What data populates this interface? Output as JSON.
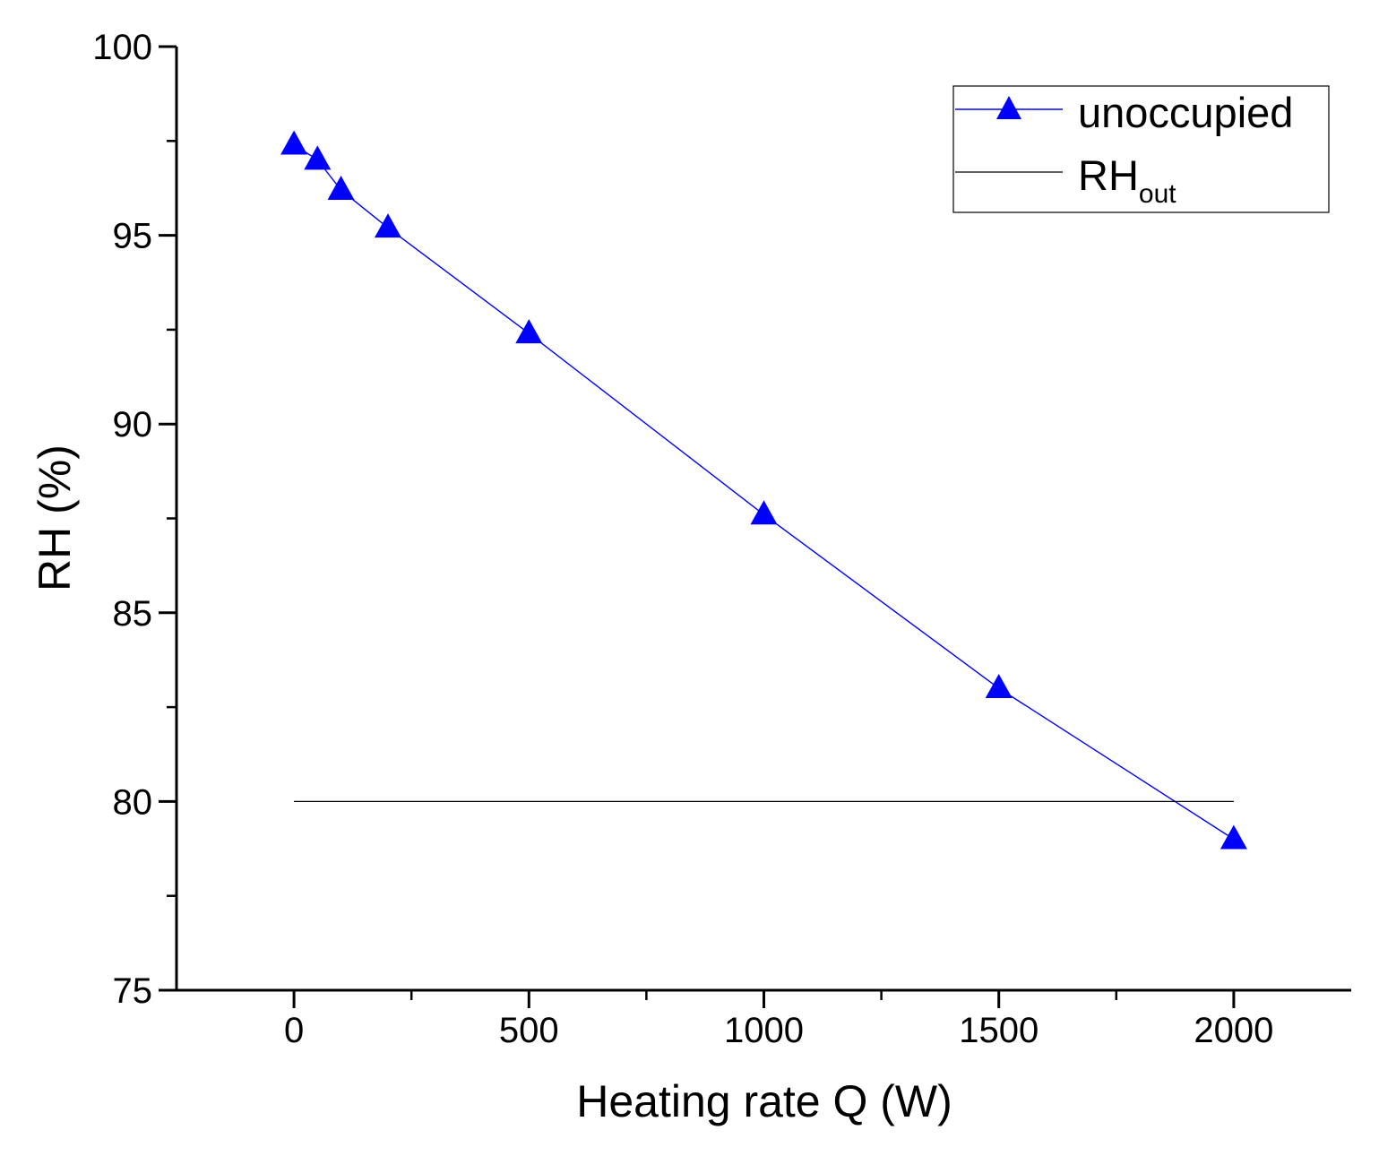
{
  "chart_data": {
    "type": "line",
    "title": "",
    "xlabel": "Heating rate Q (W)",
    "ylabel": "RH (%)",
    "xlim": [
      -250,
      2250
    ],
    "ylim": [
      75,
      100
    ],
    "xticks": [
      0,
      500,
      1000,
      1500,
      2000
    ],
    "yticks": [
      75,
      80,
      85,
      90,
      95,
      100
    ],
    "xtick_labels": [
      "0",
      "500",
      "1000",
      "1500",
      "2000"
    ],
    "ytick_labels": [
      "75",
      "80",
      "85",
      "90",
      "95",
      "100"
    ],
    "x_minor_step": 250,
    "y_minor_step": 2.5,
    "grid": false,
    "legend_position": "top-right",
    "series": [
      {
        "name": "unoccupied",
        "color": "#0000ff",
        "marker": "triangle",
        "x": [
          0,
          50,
          100,
          200,
          500,
          1000,
          1500,
          2000
        ],
        "y": [
          97.4,
          97.0,
          96.2,
          95.2,
          92.4,
          87.6,
          83.0,
          79.0
        ]
      },
      {
        "name": "RHout",
        "legend_main": "RH",
        "legend_sub": "out",
        "color": "#000000",
        "marker": "none",
        "x": [
          0,
          2000
        ],
        "y": [
          80,
          80
        ]
      }
    ]
  }
}
